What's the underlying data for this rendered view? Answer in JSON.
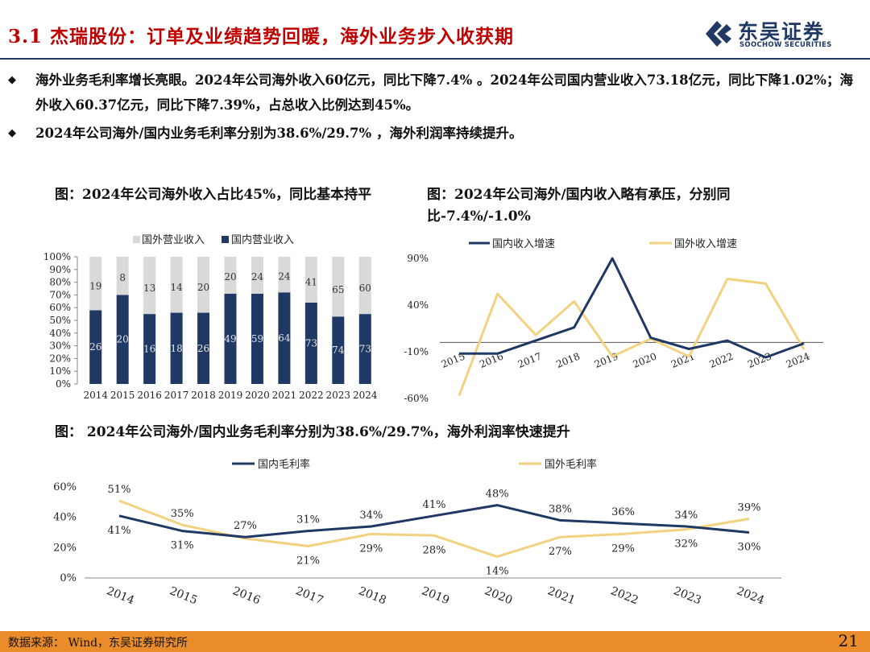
{
  "header": {
    "title": "3.1 杰瑞股份：订单及业绩趋势回暖，海外业务步入收获期",
    "logo_cn": "东吴证券",
    "logo_en": "SOOCHOW SECURITIES"
  },
  "bullets": [
    "海外业务毛利率增长亮眼。2024年公司海外收入60亿元，同比下降7.4% 。2024年公司国内营业收入73.18亿元，同比下降1.02%；海外收入60.37亿元，同比下降7.39%，占总收入比例达到45%。",
    "2024年公司海外/国内业务毛利率分别为38.6%/29.7% ，海外利润率持续提升。"
  ],
  "bullet_marker": "◆",
  "figures": {
    "fig1_title": "图：2024年公司海外收入占比45%，同比基本持平",
    "fig2_title": "图：2024年公司海外/国内收入略有承压，分别同比-7.4%/-1.0%",
    "fig3_title": "图： 2024年公司海外/国内业务毛利率分别为38.6%/29.7%，海外利润率快速提升"
  },
  "footer": {
    "source": "数据来源： Wind，东吴证券研究所",
    "page": "21"
  },
  "colors": {
    "domestic": "#1f3864",
    "overseas_bar": "#d9d9d9",
    "overseas_line": "#f2d280",
    "title_red": "#c00000",
    "footer_bg": "#eb8c2b"
  },
  "chart_data": [
    {
      "type": "bar",
      "stacked": true,
      "categories": [
        "2014",
        "2015",
        "2016",
        "2017",
        "2018",
        "2019",
        "2020",
        "2021",
        "2022",
        "2023",
        "2024"
      ],
      "ylim": [
        0,
        100
      ],
      "yticks": [
        "0%",
        "10%",
        "20%",
        "30%",
        "40%",
        "50%",
        "60%",
        "70%",
        "80%",
        "90%",
        "100%"
      ],
      "series": [
        {
          "name": "国内营业收入",
          "share_pct": [
            58,
            70,
            55,
            56,
            56,
            71,
            71,
            72,
            64,
            53,
            55
          ],
          "labels": [
            "26",
            "20",
            "16",
            "18",
            "26",
            "49",
            "59",
            "64",
            "73",
            "74",
            "73"
          ]
        },
        {
          "name": "国外营业收入",
          "share_pct": [
            42,
            30,
            45,
            44,
            44,
            29,
            29,
            28,
            36,
            47,
            45
          ],
          "labels": [
            "19",
            "8",
            "13",
            "14",
            "20",
            "20",
            "24",
            "24",
            "41",
            "65",
            "60"
          ]
        }
      ],
      "legend": "top"
    },
    {
      "type": "line",
      "x": [
        "2015",
        "2016",
        "2017",
        "2018",
        "2019",
        "2020",
        "2021",
        "2022",
        "2023",
        "2024"
      ],
      "ylim": [
        -60,
        90
      ],
      "yticks": [
        "90%",
        "40%",
        "-10%",
        "-60%"
      ],
      "ytick_values": [
        90,
        40,
        -10,
        -60
      ],
      "series": [
        {
          "name": "国内收入增速",
          "values": [
            -12,
            -12,
            2,
            16,
            90,
            5,
            -7,
            2,
            -16,
            -1
          ]
        },
        {
          "name": "国外收入增速",
          "values": [
            -57,
            52,
            8,
            44,
            -15,
            4,
            -15,
            68,
            63,
            -7.4
          ]
        }
      ],
      "legend": "top"
    },
    {
      "type": "line",
      "x": [
        "2014",
        "2015",
        "2016",
        "2017",
        "2018",
        "2019",
        "2020",
        "2021",
        "2022",
        "2023",
        "2024"
      ],
      "ylim": [
        0,
        60
      ],
      "yticks": [
        "0%",
        "20%",
        "40%",
        "60%"
      ],
      "ytick_values": [
        0,
        20,
        40,
        60
      ],
      "series": [
        {
          "name": "国内毛利率",
          "values": [
            41,
            31,
            27,
            31,
            34,
            41,
            48,
            38,
            36,
            34,
            30
          ],
          "labels": [
            "41%",
            "31%",
            "27%",
            "31%",
            "34%",
            "41%",
            "48%",
            "38%",
            "36%",
            "34%",
            "30%"
          ]
        },
        {
          "name": "国外毛利率",
          "values": [
            51,
            35,
            26,
            21,
            29,
            28,
            14,
            27,
            29,
            32,
            39
          ],
          "labels": [
            "51%",
            "35%",
            "",
            "21%",
            "29%",
            "28%",
            "14%",
            "27%",
            "29%",
            "32%",
            "39%"
          ]
        }
      ],
      "legend": "top"
    }
  ]
}
